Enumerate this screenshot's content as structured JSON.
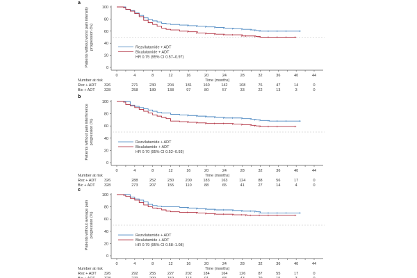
{
  "chart_data": [
    {
      "type": "line",
      "panel": "a",
      "ylabel_line1": "Patients without worst pain intensity",
      "ylabel_line2": "progression (%)",
      "xlabel": "Time (months)",
      "xticks": [
        0,
        4,
        8,
        12,
        16,
        20,
        24,
        28,
        32,
        36,
        40,
        44
      ],
      "yticks": [
        0,
        20,
        40,
        60,
        80,
        100
      ],
      "xlim": [
        0,
        44
      ],
      "ylim": [
        0,
        100
      ],
      "reference_line": 50,
      "hr_text": "HR 0.75 (95% CI 0.57–0.97)",
      "series": [
        {
          "name": "Rezvilutamide + ADT",
          "color": "#4a86c0",
          "x": [
            0,
            1.5,
            2,
            3,
            4,
            5,
            6,
            7,
            8,
            9,
            10,
            11,
            12,
            14,
            16,
            18,
            20,
            22,
            24,
            26,
            28,
            30,
            31,
            32,
            34,
            36,
            38,
            41
          ],
          "y": [
            100,
            100,
            96,
            94,
            90,
            86,
            82,
            79,
            77,
            75,
            73,
            72,
            71,
            70,
            69,
            68,
            67,
            66,
            65,
            64,
            63,
            62,
            61,
            60,
            60,
            60,
            60,
            60
          ]
        },
        {
          "name": "Bicalutamide + ADT",
          "color": "#b03040",
          "x": [
            0,
            1.5,
            2,
            3,
            4,
            5,
            6,
            7,
            8,
            9,
            10,
            11,
            12,
            14,
            16,
            18,
            20,
            22,
            24,
            26,
            28,
            29,
            31,
            32,
            34,
            36,
            38,
            40
          ],
          "y": [
            100,
            99,
            96,
            93,
            89,
            84,
            78,
            74,
            71,
            68,
            65,
            63,
            62,
            60,
            59,
            57,
            56,
            55,
            54,
            54,
            52,
            52,
            51,
            50,
            50,
            50,
            50,
            50
          ]
        }
      ],
      "risk_table": {
        "title": "Number at risk",
        "rows": [
          {
            "label": "Rez + ADT",
            "values": [
              326,
              271,
              230,
              204,
              181,
              160,
              142,
              108,
              76,
              47,
              14,
              0
            ]
          },
          {
            "label": "Bic + ADT",
            "values": [
              328,
              258,
              189,
              138,
              97,
              80,
              57,
              33,
              22,
              13,
              3,
              0
            ]
          }
        ]
      }
    },
    {
      "type": "line",
      "panel": "b",
      "ylabel_line1": "Patients without pain interference",
      "ylabel_line2": "progression (%)",
      "xlabel": "Time (months)",
      "xticks": [
        0,
        4,
        8,
        12,
        16,
        20,
        24,
        28,
        32,
        36,
        40,
        44
      ],
      "yticks": [
        0,
        20,
        40,
        60,
        80,
        100
      ],
      "xlim": [
        0,
        44
      ],
      "ylim": [
        0,
        100
      ],
      "reference_line": 50,
      "hr_text": "HR 0.70 (95% CI 0.52–0.93)",
      "series": [
        {
          "name": "Rezvilutamide + ADT",
          "color": "#4a86c0",
          "x": [
            0,
            2,
            3,
            4,
            5,
            6,
            7,
            8,
            9,
            10,
            12,
            14,
            16,
            18,
            20,
            22,
            24,
            26,
            28,
            30,
            31,
            32,
            34,
            36,
            38,
            41
          ],
          "y": [
            100,
            100,
            94,
            92,
            90,
            88,
            86,
            84,
            82,
            81,
            79,
            78,
            77,
            76,
            75,
            74,
            73,
            73,
            72,
            71,
            70,
            69,
            68,
            68,
            68,
            68
          ]
        },
        {
          "name": "Bicalutamide + ADT",
          "color": "#b03040",
          "x": [
            0,
            1.5,
            2,
            3,
            4,
            5,
            6,
            7,
            8,
            9,
            10,
            11,
            12,
            14,
            16,
            18,
            20,
            22,
            24,
            26,
            28,
            30,
            31,
            32,
            34,
            36,
            40
          ],
          "y": [
            100,
            99,
            95,
            93,
            90,
            87,
            84,
            81,
            78,
            76,
            74,
            72,
            68,
            67,
            66,
            65,
            64,
            64,
            64,
            63,
            62,
            61,
            60,
            59,
            59,
            59,
            59
          ]
        }
      ],
      "risk_table": {
        "title": "Number at risk",
        "rows": [
          {
            "label": "Rez + ADT",
            "values": [
              326,
              288,
              252,
              230,
              200,
              183,
              163,
              124,
              88,
              56,
              17,
              0
            ]
          },
          {
            "label": "Bic + ADT",
            "values": [
              328,
              273,
              207,
              155,
              110,
              88,
              65,
              41,
              27,
              14,
              4,
              0
            ]
          }
        ]
      }
    },
    {
      "type": "line",
      "panel": "c",
      "ylabel_line1": "Patients without average pain",
      "ylabel_line2": "progression (%)",
      "xlabel": "Time (months)",
      "xticks": [
        0,
        4,
        8,
        12,
        16,
        20,
        24,
        28,
        32,
        36,
        40,
        44
      ],
      "yticks": [
        0,
        20,
        40,
        60,
        80,
        100
      ],
      "xlim": [
        0,
        44
      ],
      "ylim": [
        0,
        100
      ],
      "reference_line": 50,
      "hr_text": "HR 0.79 (95% CI 0.58–1.08)",
      "series": [
        {
          "name": "Rezvilutamide + ADT",
          "color": "#4a86c0",
          "x": [
            0,
            2,
            3,
            4,
            5,
            6,
            7,
            8,
            9,
            10,
            12,
            14,
            16,
            18,
            20,
            22,
            24,
            26,
            28,
            30,
            31,
            32,
            34,
            36,
            38,
            41
          ],
          "y": [
            100,
            100,
            96,
            93,
            91,
            88,
            84,
            82,
            81,
            80,
            80,
            79,
            78,
            77,
            76,
            75,
            75,
            74,
            73,
            73,
            72,
            70,
            70,
            70,
            70,
            70
          ]
        },
        {
          "name": "Bicalutamide + ADT",
          "color": "#b03040",
          "x": [
            0,
            1.5,
            2,
            3,
            4,
            5,
            6,
            7,
            8,
            9,
            10,
            11,
            12,
            14,
            16,
            18,
            20,
            22,
            24,
            26,
            28,
            29,
            30,
            32,
            34,
            36,
            40
          ],
          "y": [
            100,
            99,
            97,
            94,
            91,
            87,
            83,
            80,
            78,
            77,
            75,
            73,
            72,
            71,
            71,
            70,
            69,
            68,
            68,
            67,
            67,
            66,
            66,
            66,
            66,
            66,
            66
          ]
        }
      ],
      "risk_table": {
        "title": "Number at risk",
        "rows": [
          {
            "label": "Rez + ADT",
            "values": [
              326,
              292,
              255,
              227,
              202,
              184,
              164,
              126,
              87,
              55,
              17,
              0
            ]
          },
          {
            "label": "Bic + ADT",
            "values": [
              328,
              279,
              209,
              159,
              113,
              91,
              68,
              43,
              29,
              15,
              3,
              0
            ]
          }
        ]
      }
    }
  ]
}
